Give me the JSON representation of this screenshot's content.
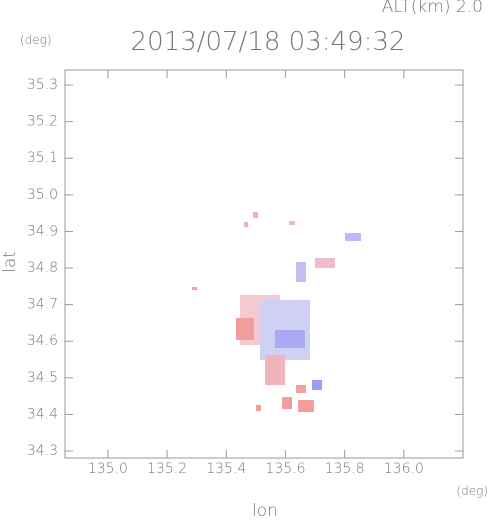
{
  "chart_data": {
    "type": "radar-map",
    "title": "2013/07/18 03:49:32",
    "altitude_label": "ALT(km)  2.0",
    "y_unit": "(deg)",
    "x_unit": "(deg)",
    "x_label": "lon",
    "y_label": "lat",
    "xlim": [
      134.855,
      136.2
    ],
    "ylim": [
      34.281,
      35.341
    ],
    "xticks": [
      {
        "value": 135.0,
        "label": "135.0"
      },
      135.2,
      135.4,
      135.6,
      135.8,
      {
        "value": 136.0,
        "label": "136.0"
      }
    ],
    "yticks": [
      35.3,
      35.2,
      35.1,
      {
        "value": 35.0,
        "label": "35.0"
      },
      34.9,
      34.8,
      34.7,
      34.6,
      34.5,
      34.4,
      34.3
    ]
  }
}
